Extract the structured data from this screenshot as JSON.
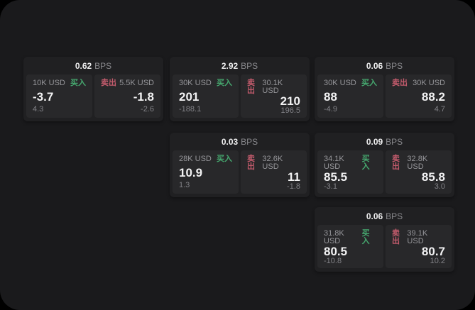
{
  "unit_label": "BPS",
  "actions": {
    "buy": "买入",
    "sell": "卖出"
  },
  "colors": {
    "buy_green": "#46a86f",
    "sell_red": "#c25b6c",
    "panel_bg": "#1a1a1c",
    "card_bg": "#202022",
    "tile_bg": "#28282a"
  },
  "cards": [
    {
      "spread": "0.62",
      "buy": {
        "amount": "10K USD",
        "price": "-3.7",
        "sub": "4.3"
      },
      "sell": {
        "amount": "5.5K USD",
        "price": "-1.8",
        "sub": "-2.6"
      }
    },
    {
      "spread": "2.92",
      "buy": {
        "amount": "30K USD",
        "price": "201",
        "sub": "-188.1"
      },
      "sell": {
        "amount": "30.1K USD",
        "price": "210",
        "sub": "196.5"
      }
    },
    {
      "spread": "0.06",
      "buy": {
        "amount": "30K USD",
        "price": "88",
        "sub": "-4.9"
      },
      "sell": {
        "amount": "30K USD",
        "price": "88.2",
        "sub": "4.7"
      }
    },
    {
      "spread": "0.03",
      "buy": {
        "amount": "28K USD",
        "price": "10.9",
        "sub": "1.3"
      },
      "sell": {
        "amount": "32.6K USD",
        "price": "11",
        "sub": "-1.8"
      }
    },
    {
      "spread": "0.09",
      "buy": {
        "amount": "34.1K USD",
        "price": "85.5",
        "sub": "-3.1"
      },
      "sell": {
        "amount": "32.8K USD",
        "price": "85.8",
        "sub": "3.0"
      }
    },
    {
      "spread": "0.06",
      "buy": {
        "amount": "31.8K USD",
        "price": "80.5",
        "sub": "-10.8"
      },
      "sell": {
        "amount": "39.1K USD",
        "price": "80.7",
        "sub": "10.2"
      }
    }
  ]
}
